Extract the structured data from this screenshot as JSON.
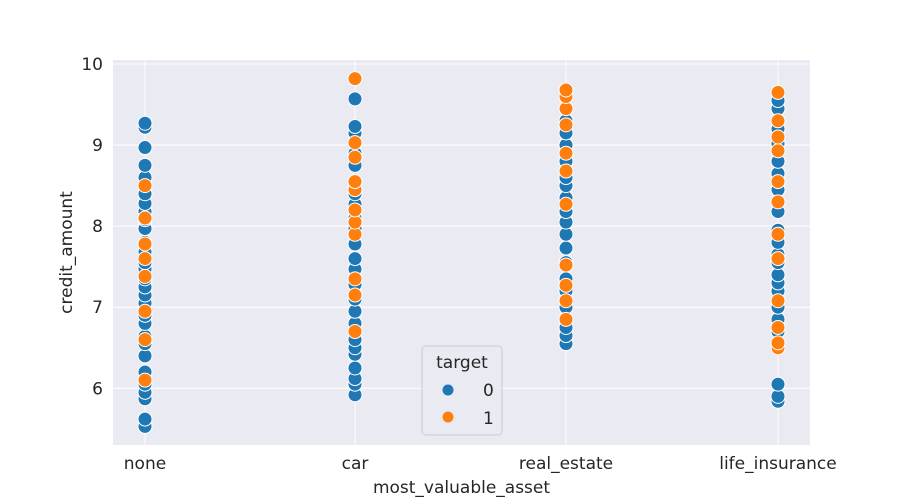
{
  "chart_data": {
    "type": "scatter",
    "xlabel": "most_valuable_asset",
    "ylabel": "credit_amount",
    "categories": [
      "none",
      "car",
      "real_estate",
      "life_insurance"
    ],
    "ylim": [
      5.3,
      10.05
    ],
    "yticks": [
      "6",
      "7",
      "8",
      "9",
      "10"
    ],
    "grid": true,
    "legend": {
      "title": "target",
      "placement": "lower-center",
      "entries": [
        {
          "label": "0",
          "color": "#1f77b4"
        },
        {
          "label": "1",
          "color": "#ff7f0e"
        }
      ]
    },
    "series": [
      {
        "target": "0",
        "color": "#1f77b4",
        "points": {
          "none": [
            5.53,
            5.62,
            5.87,
            5.95,
            6.05,
            6.2,
            6.4,
            6.55,
            6.64,
            6.8,
            6.9,
            7.05,
            7.15,
            7.25,
            7.35,
            7.47,
            7.55,
            7.68,
            7.8,
            7.97,
            8.08,
            8.18,
            8.28,
            8.4,
            8.6,
            8.75,
            8.97,
            9.22,
            9.27
          ],
          "car": [
            5.92,
            6.05,
            6.12,
            6.25,
            6.42,
            6.5,
            6.6,
            6.8,
            6.95,
            7.1,
            7.28,
            7.47,
            7.6,
            7.78,
            7.97,
            8.1,
            8.27,
            8.4,
            8.55,
            8.75,
            8.9,
            9.15,
            9.23,
            9.57
          ],
          "real_estate": [
            6.55,
            6.65,
            6.75,
            6.85,
            7.0,
            7.2,
            7.35,
            7.55,
            7.73,
            7.9,
            8.05,
            8.18,
            8.35,
            8.5,
            8.6,
            8.8,
            9.0,
            9.15,
            9.3,
            9.45
          ],
          "life_insurance": [
            5.84,
            5.9,
            6.05,
            6.7,
            6.85,
            7.0,
            7.2,
            7.3,
            7.4,
            7.55,
            7.65,
            7.8,
            7.95,
            8.18,
            8.45,
            8.65,
            8.8,
            9.02,
            9.2,
            9.45,
            9.55
          ]
        }
      },
      {
        "target": "1",
        "color": "#ff7f0e",
        "points": {
          "none": [
            6.1,
            6.6,
            6.95,
            7.38,
            7.6,
            7.78,
            8.1,
            8.5
          ],
          "car": [
            6.7,
            7.15,
            7.35,
            7.9,
            8.05,
            8.2,
            8.45,
            8.55,
            8.85,
            9.03,
            9.82
          ],
          "real_estate": [
            6.85,
            7.08,
            7.27,
            7.52,
            8.27,
            8.68,
            8.9,
            9.25,
            9.45,
            9.6,
            9.68
          ],
          "life_insurance": [
            6.5,
            6.56,
            6.75,
            7.08,
            7.6,
            7.9,
            8.3,
            8.55,
            8.93,
            9.1,
            9.3,
            9.65
          ]
        }
      }
    ]
  }
}
